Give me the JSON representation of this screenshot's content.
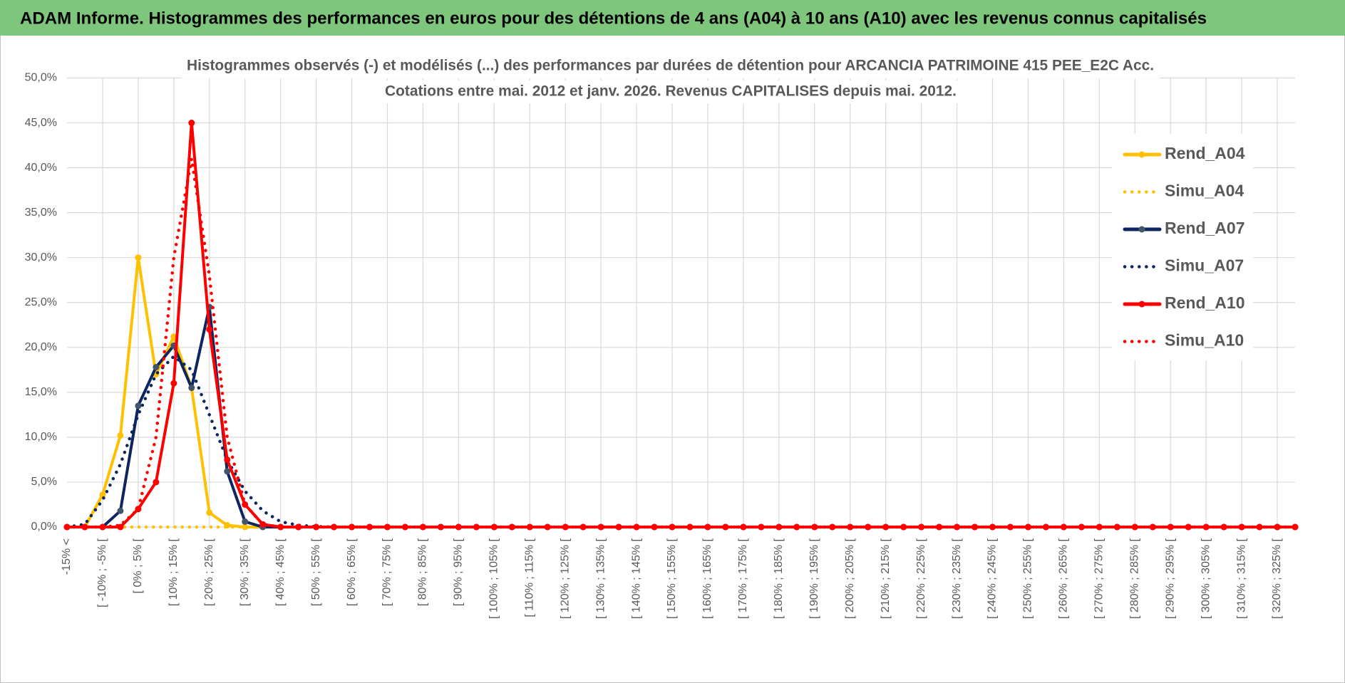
{
  "chart_data": {
    "type": "line",
    "header": "ADAM Informe. Histogrammes des performances en euros pour des détentions de 4 ans (A04) à 10 ans (A10) avec les revenus connus capitalisés",
    "title": "Histogrammes observés (-) et modélisés (...) des performances par durées de détention pour ARCANCIA PATRIMOINE 415 PEE_E2C Acc.",
    "subtitle": "Cotations entre mai. 2012 et janv. 2026. Revenus CAPITALISES depuis mai. 2012.",
    "categories": [
      "-15% <",
      null,
      "[ -10% ; -5% [",
      null,
      "[ 0% ; 5% [",
      null,
      "[ 10% ; 15% [",
      null,
      "[ 20% ; 25% [",
      null,
      "[ 30% ; 35% [",
      null,
      "[ 40% ; 45% [",
      null,
      "[ 50% ; 55% [",
      null,
      "[ 60% ; 65% [",
      null,
      "[ 70% ; 75% [",
      null,
      "[ 80% ; 85% [",
      null,
      "[ 90% ; 95% [",
      null,
      "[ 100% ; 105% [",
      null,
      "[ 110% ; 115% [",
      null,
      "[ 120% ; 125% [",
      null,
      "[ 130% ; 135% [",
      null,
      "[ 140% ; 145% [",
      null,
      "[ 150% ; 155% [",
      null,
      "[ 160% ; 165% [",
      null,
      "[ 170% ; 175% [",
      null,
      "[ 180% ; 185% [",
      null,
      "[ 190% ; 195% [",
      null,
      "[ 200% ; 205% [",
      null,
      "[ 210% ; 215% [",
      null,
      "[ 220% ; 225% [",
      null,
      "[ 230% ; 235% [",
      null,
      "[ 240% ; 245% [",
      null,
      "[ 250% ; 255% [",
      null,
      "[ 260% ; 265% [",
      null,
      "[ 270% ; 275% [",
      null,
      "[ 280% ; 285% [",
      null,
      "[ 290% ; 295% [",
      null,
      "[ 300% ; 305% [",
      null,
      "[ 310% ; 315% [",
      null,
      "[ 320% ; 325% [",
      null
    ],
    "series": [
      {
        "name": "Rend_A04",
        "color": "#ffc000",
        "dotted": false,
        "markers": true,
        "values": [
          0,
          0,
          3.6,
          10.2,
          30,
          17,
          21.2,
          15.5,
          1.6,
          0.2,
          0,
          0,
          0,
          0,
          0,
          0,
          0,
          0,
          0,
          0,
          0,
          0,
          0,
          0,
          0,
          0,
          0,
          0,
          0,
          0,
          0,
          0,
          0,
          0,
          0,
          0,
          0,
          0,
          0,
          0,
          0,
          0,
          0,
          0,
          0,
          0,
          0,
          0,
          0,
          0,
          0,
          0,
          0,
          0,
          0,
          0,
          0,
          0,
          0,
          0,
          0,
          0,
          0,
          0,
          0,
          0,
          0,
          0,
          0,
          0
        ]
      },
      {
        "name": "Simu_A04",
        "color": "#ffc000",
        "dotted": true,
        "markers": false,
        "values": [
          0,
          0,
          0,
          0,
          0,
          0,
          0,
          0,
          0,
          0,
          0,
          0,
          0,
          0,
          0,
          0,
          0,
          0,
          0,
          0,
          0,
          0,
          0,
          0,
          0,
          0,
          0,
          0,
          0,
          0,
          0,
          0,
          0,
          0,
          0,
          0,
          0,
          0,
          0,
          0,
          0,
          0,
          0,
          0,
          0,
          0,
          0,
          0,
          0,
          0,
          0,
          0,
          0,
          0,
          0,
          0,
          0,
          0,
          0,
          0,
          0,
          0,
          0,
          0,
          0,
          0,
          0,
          0,
          0,
          0
        ]
      },
      {
        "name": "Rend_A07",
        "color": "#0d2660",
        "marker_color": "#44546a",
        "dotted": false,
        "markers": true,
        "values": [
          0,
          0,
          0,
          1.8,
          13.5,
          17.8,
          20.2,
          15.5,
          24.5,
          6.2,
          0.6,
          0,
          0,
          0,
          0,
          0,
          0,
          0,
          0,
          0,
          0,
          0,
          0,
          0,
          0,
          0,
          0,
          0,
          0,
          0,
          0,
          0,
          0,
          0,
          0,
          0,
          0,
          0,
          0,
          0,
          0,
          0,
          0,
          0,
          0,
          0,
          0,
          0,
          0,
          0,
          0,
          0,
          0,
          0,
          0,
          0,
          0,
          0,
          0,
          0,
          0,
          0,
          0,
          0,
          0,
          0,
          0,
          0,
          0,
          0
        ]
      },
      {
        "name": "Simu_A07",
        "color": "#0d2660",
        "dotted": true,
        "markers": false,
        "values": [
          0,
          0.3,
          3,
          7,
          12.5,
          17,
          19,
          17.5,
          12.5,
          7.5,
          4,
          1.8,
          0.6,
          0.2,
          0.05,
          0,
          0,
          0,
          0,
          0,
          0,
          0,
          0,
          0,
          0,
          0,
          0,
          0,
          0,
          0,
          0,
          0,
          0,
          0,
          0,
          0,
          0,
          0,
          0,
          0,
          0,
          0,
          0,
          0,
          0,
          0,
          0,
          0,
          0,
          0,
          0,
          0,
          0,
          0,
          0,
          0,
          0,
          0,
          0,
          0,
          0,
          0,
          0,
          0,
          0,
          0,
          0,
          0,
          0,
          0
        ]
      },
      {
        "name": "Rend_A10",
        "color": "#ff0000",
        "dotted": false,
        "markers": true,
        "values": [
          0,
          0,
          0,
          0,
          2,
          5,
          16,
          45,
          22,
          7.5,
          2.5,
          0.3,
          0,
          0,
          0,
          0,
          0,
          0,
          0,
          0,
          0,
          0,
          0,
          0,
          0,
          0,
          0,
          0,
          0,
          0,
          0,
          0,
          0,
          0,
          0,
          0,
          0,
          0,
          0,
          0,
          0,
          0,
          0,
          0,
          0,
          0,
          0,
          0,
          0,
          0,
          0,
          0,
          0,
          0,
          0,
          0,
          0,
          0,
          0,
          0,
          0,
          0,
          0,
          0,
          0,
          0,
          0,
          0,
          0,
          0
        ]
      },
      {
        "name": "Simu_A10",
        "color": "#ff0000",
        "dotted": true,
        "markers": false,
        "values": [
          0,
          0,
          0,
          0.2,
          2,
          10,
          30,
          41,
          28,
          10,
          2.5,
          0.3,
          0,
          0,
          0,
          0,
          0,
          0,
          0,
          0,
          0,
          0,
          0,
          0,
          0,
          0,
          0,
          0,
          0,
          0,
          0,
          0,
          0,
          0,
          0,
          0,
          0,
          0,
          0,
          0,
          0,
          0,
          0,
          0,
          0,
          0,
          0,
          0,
          0,
          0,
          0,
          0,
          0,
          0,
          0,
          0,
          0,
          0,
          0,
          0,
          0,
          0,
          0,
          0,
          0,
          0,
          0,
          0,
          0,
          0
        ]
      }
    ],
    "ylim": [
      0,
      50
    ],
    "yticks": [
      {
        "value": 0,
        "label": "0,0%"
      },
      {
        "value": 5,
        "label": "5,0%"
      },
      {
        "value": 10,
        "label": "10,0%"
      },
      {
        "value": 15,
        "label": "15,0%"
      },
      {
        "value": 20,
        "label": "20,0%"
      },
      {
        "value": 25,
        "label": "25,0%"
      },
      {
        "value": 30,
        "label": "30,0%"
      },
      {
        "value": 35,
        "label": "35,0%"
      },
      {
        "value": 40,
        "label": "40,0%"
      },
      {
        "value": 45,
        "label": "45,0%"
      },
      {
        "value": 50,
        "label": "50,0%"
      }
    ],
    "grid": true,
    "legend": "right"
  }
}
